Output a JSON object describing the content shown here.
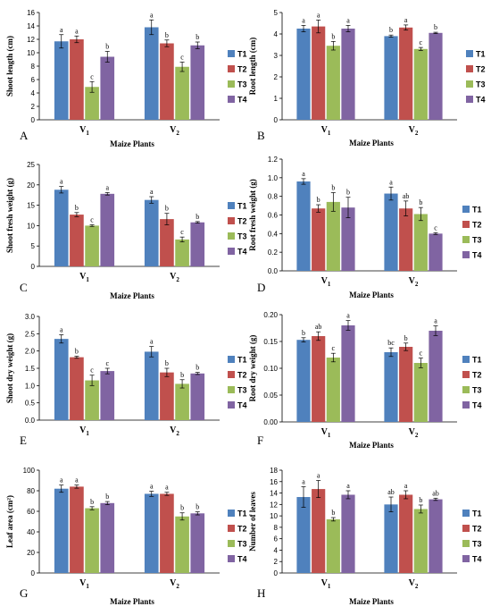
{
  "colors": {
    "T1": "#4F81BD",
    "T2": "#C0504D",
    "T3": "#9BBB59",
    "T4": "#8064A2"
  },
  "chart_data": [
    {
      "panel": "A",
      "type": "bar",
      "categories": [
        "V1",
        "V2"
      ],
      "xlabel": "Maize Plants",
      "ylabel": "Shoot length (cm)",
      "ylim": [
        0,
        16
      ],
      "yticks": [
        0,
        2,
        4,
        6,
        8,
        10,
        12,
        14,
        16
      ],
      "series": [
        {
          "name": "T1",
          "values": [
            11.7,
            13.8
          ],
          "err": [
            1.0,
            1.1
          ],
          "sig": [
            "a",
            "a"
          ]
        },
        {
          "name": "T2",
          "values": [
            12.0,
            11.4
          ],
          "err": [
            0.5,
            0.5
          ],
          "sig": [
            "a",
            "b"
          ]
        },
        {
          "name": "T3",
          "values": [
            4.9,
            7.9
          ],
          "err": [
            0.8,
            0.7
          ],
          "sig": [
            "c",
            "c"
          ]
        },
        {
          "name": "T4",
          "values": [
            9.4,
            11.1
          ],
          "err": [
            0.8,
            0.5
          ],
          "sig": [
            "b",
            "b"
          ]
        }
      ]
    },
    {
      "panel": "B",
      "type": "bar",
      "categories": [
        "V1",
        "V2"
      ],
      "xlabel": "Maize Plants",
      "ylabel": "Root length (cm)",
      "ylim": [
        0,
        5
      ],
      "yticks": [
        0,
        1,
        2,
        3,
        4,
        5
      ],
      "series": [
        {
          "name": "T1",
          "values": [
            4.25,
            3.9
          ],
          "err": [
            0.15,
            0.05
          ],
          "sig": [
            "a",
            "b"
          ]
        },
        {
          "name": "T2",
          "values": [
            4.35,
            4.3
          ],
          "err": [
            0.3,
            0.12
          ],
          "sig": [
            "a",
            "a"
          ]
        },
        {
          "name": "T3",
          "values": [
            3.45,
            3.3
          ],
          "err": [
            0.2,
            0.07
          ],
          "sig": [
            "b",
            "c"
          ]
        },
        {
          "name": "T4",
          "values": [
            4.25,
            4.05
          ],
          "err": [
            0.15,
            0.03
          ],
          "sig": [
            "a",
            "b"
          ]
        }
      ]
    },
    {
      "panel": "C",
      "type": "bar",
      "categories": [
        "V1",
        "V2"
      ],
      "xlabel": "Maize Plants",
      "ylabel": "Shoot fresh weight (g)",
      "ylim": [
        0,
        25
      ],
      "yticks": [
        0,
        5,
        10,
        15,
        20,
        25
      ],
      "series": [
        {
          "name": "T1",
          "values": [
            18.8,
            16.3
          ],
          "err": [
            0.8,
            0.8
          ],
          "sig": [
            "a",
            "a"
          ]
        },
        {
          "name": "T2",
          "values": [
            12.7,
            11.6
          ],
          "err": [
            0.5,
            1.4
          ],
          "sig": [
            "b",
            "b"
          ]
        },
        {
          "name": "T3",
          "values": [
            10.0,
            6.6
          ],
          "err": [
            0.2,
            0.6
          ],
          "sig": [
            "c",
            "c"
          ]
        },
        {
          "name": "T4",
          "values": [
            17.8,
            10.8
          ],
          "err": [
            0.3,
            0.2
          ],
          "sig": [
            "a",
            "b"
          ]
        }
      ]
    },
    {
      "panel": "D",
      "type": "bar",
      "categories": [
        "V1",
        "V2"
      ],
      "xlabel": "Maize Plants",
      "ylabel": "Root fresh weight (g)",
      "ylim": [
        0,
        1.2
      ],
      "yticks": [
        0.0,
        0.2,
        0.4,
        0.6,
        0.8,
        1.0,
        1.2
      ],
      "series": [
        {
          "name": "T1",
          "values": [
            0.96,
            0.83
          ],
          "err": [
            0.03,
            0.07
          ],
          "sig": [
            "a",
            "a"
          ]
        },
        {
          "name": "T2",
          "values": [
            0.67,
            0.67
          ],
          "err": [
            0.04,
            0.08
          ],
          "sig": [
            "b",
            "ab"
          ]
        },
        {
          "name": "T3",
          "values": [
            0.74,
            0.61
          ],
          "err": [
            0.1,
            0.07
          ],
          "sig": [
            "b",
            "b"
          ]
        },
        {
          "name": "T4",
          "values": [
            0.68,
            0.4
          ],
          "err": [
            0.11,
            0.01
          ],
          "sig": [
            "b",
            "c"
          ]
        }
      ]
    },
    {
      "panel": "E",
      "type": "bar",
      "categories": [
        "V1",
        "V2"
      ],
      "xlabel": "",
      "ylabel": "Shoot dry weight (g)",
      "ylim": [
        0,
        3.0
      ],
      "yticks": [
        0.0,
        0.5,
        1.0,
        1.5,
        2.0,
        2.5,
        3.0
      ],
      "series": [
        {
          "name": "T1",
          "values": [
            2.35,
            1.98
          ],
          "err": [
            0.12,
            0.15
          ],
          "sig": [
            "a",
            "a"
          ]
        },
        {
          "name": "T2",
          "values": [
            1.82,
            1.38
          ],
          "err": [
            0.03,
            0.12
          ],
          "sig": [
            "b",
            "b"
          ]
        },
        {
          "name": "T3",
          "values": [
            1.15,
            1.05
          ],
          "err": [
            0.15,
            0.12
          ],
          "sig": [
            "c",
            "b"
          ]
        },
        {
          "name": "T4",
          "values": [
            1.42,
            1.35
          ],
          "err": [
            0.08,
            0.03
          ],
          "sig": [
            "c",
            "b"
          ]
        }
      ]
    },
    {
      "panel": "F",
      "type": "bar",
      "categories": [
        "V1",
        "V2"
      ],
      "xlabel": "Maize Plants",
      "ylabel": "Root dry weight (g)",
      "ylim": [
        0,
        0.2
      ],
      "yticks": [
        0.0,
        0.05,
        0.1,
        0.15,
        0.2
      ],
      "series": [
        {
          "name": "T1",
          "values": [
            0.153,
            0.13
          ],
          "err": [
            0.004,
            0.008
          ],
          "sig": [
            "b",
            "bc"
          ]
        },
        {
          "name": "T2",
          "values": [
            0.16,
            0.14
          ],
          "err": [
            0.008,
            0.007
          ],
          "sig": [
            "ab",
            "b"
          ]
        },
        {
          "name": "T3",
          "values": [
            0.12,
            0.11
          ],
          "err": [
            0.008,
            0.009
          ],
          "sig": [
            "c",
            "c"
          ]
        },
        {
          "name": "T4",
          "values": [
            0.18,
            0.17
          ],
          "err": [
            0.009,
            0.009
          ],
          "sig": [
            "a",
            "a"
          ]
        }
      ]
    },
    {
      "panel": "G",
      "type": "bar",
      "categories": [
        "V1",
        "V2"
      ],
      "xlabel": "Maize Plants",
      "ylabel": "Leaf area (cm²)",
      "ylim": [
        0,
        100
      ],
      "yticks": [
        0,
        20,
        40,
        60,
        80,
        100
      ],
      "series": [
        {
          "name": "T1",
          "values": [
            82,
            77
          ],
          "err": [
            3.5,
            2.5
          ],
          "sig": [
            "a",
            "a"
          ]
        },
        {
          "name": "T2",
          "values": [
            84,
            77
          ],
          "err": [
            1.5,
            1.5
          ],
          "sig": [
            "a",
            "a"
          ]
        },
        {
          "name": "T3",
          "values": [
            63,
            55
          ],
          "err": [
            1.5,
            3.5
          ],
          "sig": [
            "b",
            "b"
          ]
        },
        {
          "name": "T4",
          "values": [
            68,
            58
          ],
          "err": [
            1.5,
            1.5
          ],
          "sig": [
            "b",
            "b"
          ]
        }
      ]
    },
    {
      "panel": "H",
      "type": "bar",
      "categories": [
        "V1",
        "V2"
      ],
      "xlabel": "Maize Plants",
      "ylabel": "Number of leaves",
      "ylim": [
        0,
        18
      ],
      "yticks": [
        0,
        2,
        4,
        6,
        8,
        10,
        12,
        14,
        16,
        18
      ],
      "series": [
        {
          "name": "T1",
          "values": [
            13.3,
            12.0
          ],
          "err": [
            1.8,
            1.3
          ],
          "sig": [
            "a",
            "ab"
          ]
        },
        {
          "name": "T2",
          "values": [
            14.7,
            13.7
          ],
          "err": [
            1.5,
            0.7
          ],
          "sig": [
            "a",
            "a"
          ]
        },
        {
          "name": "T3",
          "values": [
            9.4,
            11.2
          ],
          "err": [
            0.3,
            0.7
          ],
          "sig": [
            "b",
            "b"
          ]
        },
        {
          "name": "T4",
          "values": [
            13.7,
            12.9
          ],
          "err": [
            0.7,
            0.2
          ],
          "sig": [
            "a",
            "ab"
          ]
        }
      ]
    }
  ]
}
